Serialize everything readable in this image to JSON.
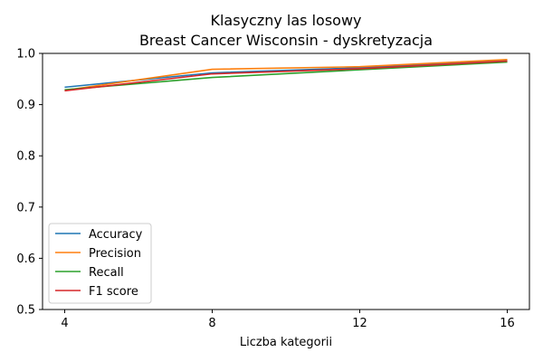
{
  "chart_data": {
    "type": "line",
    "title": "Klasyczny las losowy",
    "subtitle": "Breast Cancer Wisconsin - dyskretyzacja",
    "xlabel": "Liczba kategorii",
    "ylabel": "",
    "x": [
      4,
      8,
      12,
      16
    ],
    "xlim": [
      3.4,
      16.6
    ],
    "ylim": [
      0.5,
      1.0
    ],
    "xticks": [
      4,
      8,
      12,
      16
    ],
    "yticks": [
      0.5,
      0.6,
      0.7,
      0.8,
      0.9,
      1.0
    ],
    "xtick_labels": [
      "4",
      "8",
      "12",
      "16"
    ],
    "ytick_labels": [
      "0.5",
      "0.6",
      "0.7",
      "0.8",
      "0.9",
      "1.0"
    ],
    "grid": false,
    "legend_position": "lower-left",
    "series": [
      {
        "name": "Accuracy",
        "color": "#1f77b4",
        "values": [
          0.934,
          0.962,
          0.972,
          0.986
        ]
      },
      {
        "name": "Precision",
        "color": "#ff7f0e",
        "values": [
          0.928,
          0.969,
          0.974,
          0.988
        ]
      },
      {
        "name": "Recall",
        "color": "#2ca02c",
        "values": [
          0.929,
          0.953,
          0.968,
          0.983
        ]
      },
      {
        "name": "F1 score",
        "color": "#d62728",
        "values": [
          0.927,
          0.96,
          0.97,
          0.985
        ]
      }
    ]
  }
}
